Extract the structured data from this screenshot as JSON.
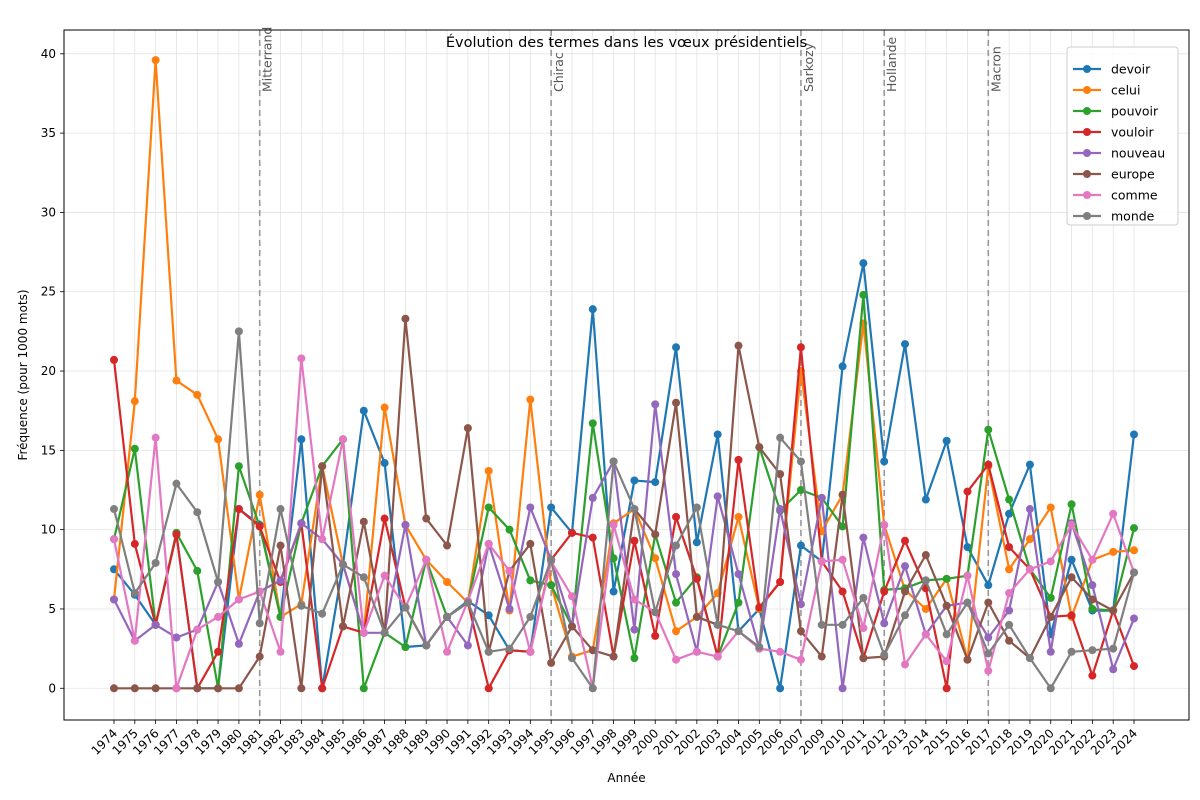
{
  "chart_data": {
    "type": "line",
    "title": "Évolution des termes dans les vœux présidentiels",
    "xlabel": "Année",
    "ylabel": "Fréquence (pour 1000 mots)",
    "ylim": [
      -2,
      41.5
    ],
    "yticks": [
      0,
      5,
      10,
      15,
      20,
      25,
      30,
      35,
      40
    ],
    "grid": true,
    "legend_position": "top-right",
    "categories": [
      "1974",
      "1975",
      "1976",
      "1977",
      "1978",
      "1979",
      "1980",
      "1981",
      "1982",
      "1983",
      "1984",
      "1985",
      "1986",
      "1987",
      "1988",
      "1989",
      "1990",
      "1991",
      "1992",
      "1993",
      "1994",
      "1995",
      "1996",
      "1997",
      "1998",
      "1999",
      "2000",
      "2001",
      "2002",
      "2003",
      "2004",
      "2005",
      "2006",
      "2007",
      "2009",
      "2010",
      "2011",
      "2012",
      "2013",
      "2014",
      "2015",
      "2016",
      "2017",
      "2018",
      "2019",
      "2020",
      "2021",
      "2022",
      "2023",
      "2024"
    ],
    "annotations": [
      {
        "label": "Mitterrand",
        "x": "1981"
      },
      {
        "label": "Chirac",
        "x": "1995"
      },
      {
        "label": "Sarkozy",
        "x": "2007"
      },
      {
        "label": "Hollande",
        "x": "2012"
      },
      {
        "label": "Macron",
        "x": "2017"
      }
    ],
    "series": [
      {
        "name": "devoir",
        "color": "#1f77b4",
        "values": [
          7.5,
          5.9,
          4.0,
          9.7,
          0,
          0,
          11.3,
          10.3,
          4.5,
          15.7,
          0,
          7.8,
          17.5,
          14.2,
          2.6,
          2.7,
          4.5,
          5.5,
          4.6,
          2.4,
          2.3,
          11.4,
          9.8,
          23.9,
          6.1,
          13.1,
          13.0,
          21.5,
          9.2,
          16.0,
          3.6,
          5.0,
          0,
          9.0,
          8.0,
          20.3,
          26.8,
          14.3,
          21.7,
          11.9,
          15.6,
          8.9,
          6.5,
          11.0,
          14.1,
          3.4,
          8.1,
          4.9,
          4.9,
          16.0
        ]
      },
      {
        "name": "celui",
        "color": "#ff7f0e",
        "values": [
          5.6,
          18.1,
          39.6,
          19.4,
          18.5,
          15.7,
          5.6,
          12.2,
          4.5,
          5.3,
          14.0,
          7.8,
          3.5,
          17.7,
          10.3,
          8.1,
          6.7,
          5.4,
          13.7,
          4.9,
          18.2,
          6.5,
          2.0,
          2.4,
          10.4,
          11.3,
          8.2,
          3.6,
          4.5,
          6.0,
          10.8,
          5.0,
          6.7,
          20.0,
          9.9,
          12.2,
          23.0,
          10.3,
          6.2,
          5.0,
          6.9,
          1.8,
          14.0,
          7.5,
          9.4,
          11.4,
          4.5,
          8.1,
          8.6,
          8.7
        ]
      },
      {
        "name": "pouvoir",
        "color": "#2ca02c",
        "values": [
          9.4,
          15.1,
          4.0,
          9.8,
          7.4,
          0,
          14.0,
          10.2,
          4.5,
          10.4,
          14.0,
          15.7,
          0,
          3.5,
          2.6,
          8.1,
          4.5,
          5.4,
          11.4,
          10.0,
          6.8,
          6.5,
          3.9,
          16.7,
          8.2,
          1.9,
          9.7,
          5.4,
          7.0,
          2.0,
          5.4,
          15.2,
          11.2,
          12.5,
          12.0,
          10.2,
          24.8,
          6.2,
          6.3,
          6.8,
          6.9,
          7.1,
          16.3,
          11.9,
          7.5,
          5.7,
          11.6,
          5.0,
          4.9,
          10.1
        ]
      },
      {
        "name": "vouloir",
        "color": "#d62728",
        "values": [
          20.7,
          9.1,
          4.0,
          9.7,
          0,
          2.3,
          11.3,
          10.2,
          6.7,
          10.4,
          0,
          3.9,
          3.5,
          10.7,
          5.1,
          2.7,
          4.5,
          5.4,
          0,
          2.4,
          2.3,
          8.1,
          9.8,
          9.5,
          2.0,
          9.3,
          3.3,
          10.8,
          6.9,
          2.0,
          14.4,
          5.1,
          6.7,
          21.5,
          8.0,
          6.1,
          1.9,
          6.1,
          9.3,
          6.3,
          0,
          12.4,
          14.1,
          8.9,
          7.5,
          4.5,
          4.6,
          0.8,
          4.9,
          1.4
        ]
      },
      {
        "name": "nouveau",
        "color": "#9467bd",
        "values": [
          5.6,
          3.0,
          4.0,
          3.2,
          3.7,
          6.7,
          2.8,
          6.1,
          6.8,
          10.4,
          9.4,
          7.8,
          3.5,
          3.5,
          10.3,
          2.7,
          4.5,
          2.7,
          9.1,
          5.0,
          11.4,
          8.1,
          3.9,
          12.0,
          14.3,
          3.7,
          17.9,
          7.2,
          2.3,
          12.1,
          7.2,
          2.5,
          11.3,
          5.3,
          12.0,
          0,
          9.5,
          4.1,
          7.7,
          3.4,
          5.2,
          5.4,
          3.2,
          4.9,
          11.3,
          2.3,
          10.4,
          6.5,
          1.2,
          4.4
        ]
      },
      {
        "name": "europe",
        "color": "#8c564b",
        "values": [
          0,
          0,
          0,
          0,
          0,
          0,
          0,
          2.0,
          9.0,
          0,
          14.0,
          3.9,
          10.5,
          3.5,
          23.3,
          10.7,
          9.0,
          16.4,
          2.3,
          7.4,
          9.1,
          1.6,
          3.9,
          2.4,
          2.0,
          11.3,
          9.7,
          18.0,
          4.5,
          4.0,
          21.6,
          15.2,
          13.5,
          3.6,
          2.0,
          12.2,
          1.9,
          2.0,
          6.1,
          8.4,
          5.2,
          1.8,
          5.4,
          3.0,
          1.9,
          4.5,
          7.0,
          5.6,
          4.9,
          7.3
        ]
      },
      {
        "name": "comme",
        "color": "#e377c2",
        "values": [
          9.4,
          3.0,
          15.8,
          0,
          3.7,
          4.5,
          5.6,
          6.1,
          2.3,
          20.8,
          9.4,
          15.7,
          3.5,
          7.1,
          5.1,
          8.1,
          2.3,
          5.5,
          9.1,
          7.4,
          2.3,
          8.0,
          5.8,
          0,
          10.3,
          5.6,
          4.8,
          1.8,
          2.3,
          2.0,
          3.6,
          2.5,
          2.3,
          1.8,
          8.0,
          8.1,
          3.8,
          10.3,
          1.5,
          3.4,
          1.7,
          7.1,
          1.1,
          6.0,
          7.5,
          8.0,
          10.3,
          8.1,
          11.0,
          7.3
        ]
      },
      {
        "name": "monde",
        "color": "#7f7f7f",
        "values": [
          11.3,
          6.0,
          7.9,
          12.9,
          11.1,
          6.7,
          22.5,
          4.1,
          11.3,
          5.2,
          4.7,
          7.8,
          7.0,
          3.5,
          5.1,
          2.7,
          4.5,
          5.4,
          2.3,
          2.5,
          4.5,
          8.1,
          1.9,
          0,
          14.3,
          11.3,
          4.8,
          9.0,
          11.4,
          4.0,
          3.6,
          2.6,
          15.8,
          14.3,
          4.0,
          4.0,
          5.7,
          2.1,
          4.6,
          6.8,
          3.4,
          5.4,
          2.2,
          4.0,
          1.9,
          0,
          2.3,
          2.4,
          2.5,
          7.3
        ]
      }
    ]
  }
}
